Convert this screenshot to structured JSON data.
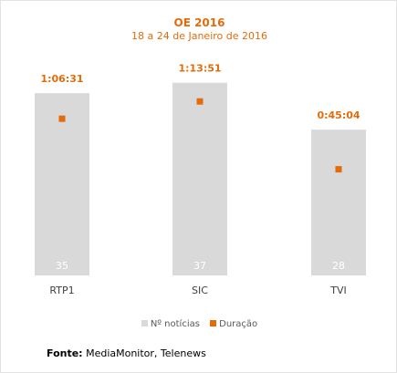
{
  "chart_data": {
    "type": "bar",
    "title": "OE 2016",
    "subtitle": "18 a 24 de Janeiro de 2016",
    "categories": [
      "RTP1",
      "SIC",
      "TVI"
    ],
    "series": [
      {
        "name": "Nº notícias",
        "type": "bar",
        "values": [
          35,
          37,
          28
        ],
        "color": "#d9d9d9"
      },
      {
        "name": "Duração",
        "type": "scatter",
        "values": [
          "1:06:31",
          "1:13:51",
          "0:45:04"
        ],
        "color": "#e36c0a"
      }
    ],
    "grid": false,
    "legend_position": "bottom"
  },
  "legend": {
    "bars_label": "Nº notícias",
    "points_label": "Duração"
  },
  "source": {
    "label": "Fonte:",
    "text": "MediaMonitor, Telenews"
  },
  "colors": {
    "accent": "#e36c0a",
    "bar": "#d9d9d9",
    "axis_text": "#404040"
  }
}
